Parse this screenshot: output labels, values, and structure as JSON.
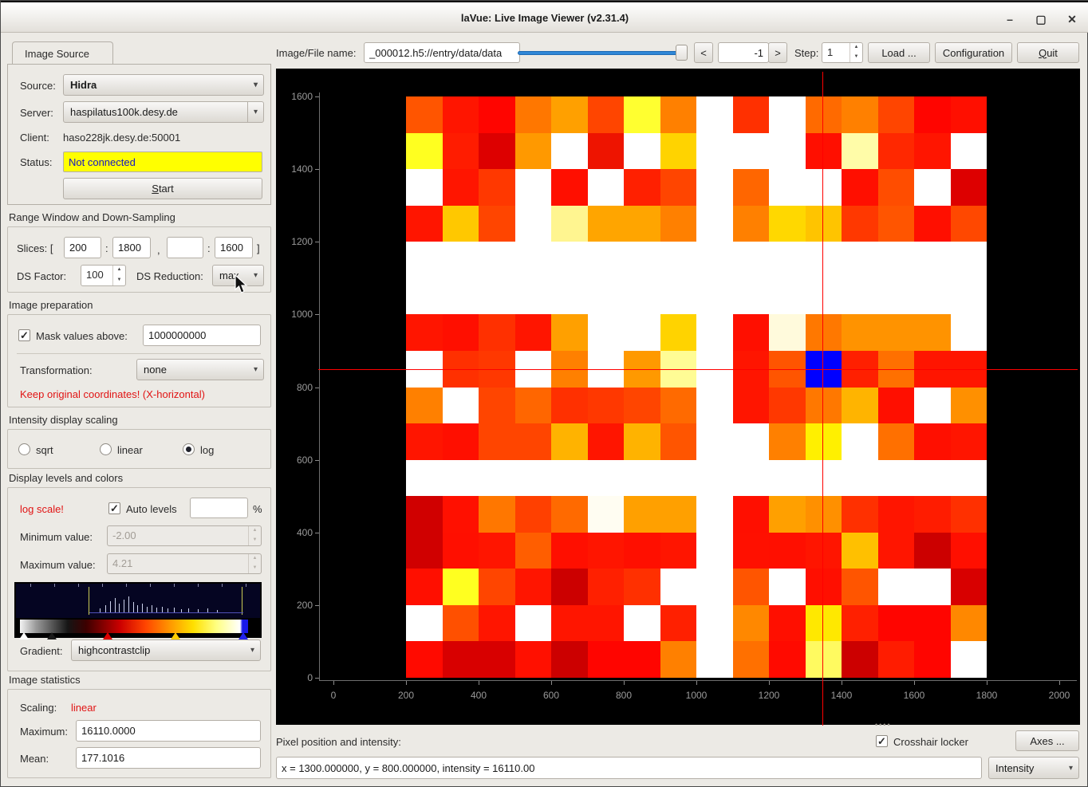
{
  "window": {
    "title": "laVue: Live Image Viewer (v2.31.4)",
    "minimize_icon": "–",
    "maximize_icon": "▢",
    "close_icon": "✕"
  },
  "icons": {
    "combo_arrow": "▾",
    "spin_up": "▲",
    "spin_down": "▼",
    "check": "✓"
  },
  "toolbar": {
    "file_label": "Image/File name:",
    "file_value": "_000012.h5://entry/data/data",
    "prev_button": "<",
    "frame_value": "-1",
    "next_button": ">",
    "step_label": "Step:",
    "step_value": "1",
    "load_button": "Load ...",
    "config_button": "Configuration",
    "quit_button": "Quit"
  },
  "source_panel": {
    "tab": "Image Source",
    "source_label": "Source:",
    "source_value": "Hidra",
    "server_label": "Server:",
    "server_value": "haspilatus100k.desy.de",
    "client_label": "Client:",
    "client_value": "haso228jk.desy.de:50001",
    "status_label": "Status:",
    "status_value": "Not connected",
    "start_button": "Start"
  },
  "range_section": {
    "title": "Range Window and Down-Sampling",
    "slices_label": "Slices: [",
    "slice_x1": "200",
    "colon1": ":",
    "slice_x2": "1800",
    "comma": ",",
    "slice_y1": "",
    "colon2": ":",
    "slice_y2": "1600",
    "bracket": "]",
    "ds_factor_label": "DS Factor:",
    "ds_factor_value": "100",
    "ds_reduction_label": "DS Reduction:",
    "ds_reduction_value": "max"
  },
  "prep_section": {
    "title": "Image preparation",
    "mask_label": "Mask values above:",
    "mask_value": "1000000000",
    "transform_label": "Transformation:",
    "transform_value": "none",
    "note": "Keep original coordinates! (X-horizontal)"
  },
  "scaling_section": {
    "title": "Intensity display scaling",
    "options": [
      "sqrt",
      "linear",
      "log"
    ],
    "selected": "log"
  },
  "levels_section": {
    "title": "Display levels and colors",
    "log_note": "log scale!",
    "auto_label": "Auto levels",
    "auto_value": "",
    "percent": "%",
    "min_label": "Minimum value:",
    "min_value": "-2.00",
    "max_label": "Maximum value:",
    "max_value": "4.21",
    "gradient_label": "Gradient:",
    "gradient_value": "highcontrastclip"
  },
  "stats_section": {
    "title": "Image statistics",
    "scaling_label": "Scaling:",
    "scaling_value": "linear",
    "maximum_label": "Maximum:",
    "maximum_value": "16110.0000",
    "mean_label": "Mean:",
    "mean_value": "177.1016"
  },
  "bottom_bar": {
    "pixel_label": "Pixel position and intensity:",
    "crosshair_label": "Crosshair locker",
    "axes_button": "Axes ...",
    "position_value": "x = 1300.000000, y = 800.000000, intensity = 16110.00",
    "display_combo": "Intensity"
  },
  "plot": {
    "x_ticks": [
      "0",
      "200",
      "400",
      "600",
      "800",
      "1000",
      "1200",
      "1400",
      "1600",
      "1800",
      "2000"
    ],
    "y_ticks": [
      "1600",
      "1400",
      "1200",
      "1000",
      "800",
      "600",
      "400",
      "200",
      "0"
    ],
    "crosshair_color": "#FF0000",
    "grid": [
      [
        "#FF5500",
        "#FF1500",
        "#FF0500",
        "#FF7700",
        "#FFA000",
        "#FF4500",
        "#FFFF30",
        "#FF8000",
        "#FFFFFF",
        "#FF3000",
        "#FFFFFF",
        "#FF6A00",
        "#FF8000",
        "#FF4500",
        "#FF0500",
        "#FF0F00"
      ],
      [
        "#FFFF20",
        "#FF1C00",
        "#DD0000",
        "#FF9900",
        "#FFFFFF",
        "#EE1400",
        "#FFFFFF",
        "#FFD300",
        "#FFFFFF",
        "#FFFFFF",
        "#FFFFFF",
        "#FF0F00",
        "#FFFCA8",
        "#FF2800",
        "#FF1500",
        "#FFFFFF"
      ],
      [
        "#FFFFFF",
        "#FF1500",
        "#FF3800",
        "#FFFFFF",
        "#FF0F00",
        "#FFFFFF",
        "#FF2000",
        "#FF4500",
        "#FFFFFF",
        "#FF6600",
        "#FFFFFF",
        "#FFFFFF",
        "#FF0F00",
        "#FF4D00",
        "#FFFFFF",
        "#DD0000"
      ],
      [
        "#FF1500",
        "#FFC800",
        "#FF4500",
        "#FFFFFF",
        "#FFF590",
        "#FFA500",
        "#FFA500",
        "#FF8000",
        "#FFFFFF",
        "#FF8000",
        "#FFD800",
        "#FFC400",
        "#FF3800",
        "#FF5500",
        "#FF0F00",
        "#FF4800"
      ],
      [
        "#FFFFFF",
        "#FFFFFF",
        "#FFFFFF",
        "#FFFFFF",
        "#FFFFFF",
        "#FFFFFF",
        "#FFFFFF",
        "#FFFFFF",
        "#FFFFFF",
        "#FFFFFF",
        "#FFFFFF",
        "#FFFFFF",
        "#FFFFFF",
        "#FFFFFF",
        "#FFFFFF",
        "#FFFFFF"
      ],
      [
        "#FFFFFF",
        "#FFFFFF",
        "#FFFFFF",
        "#FFFFFF",
        "#FFFFFF",
        "#FFFFFF",
        "#FFFFFF",
        "#FFFFFF",
        "#FFFFFF",
        "#FFFFFF",
        "#FFFFFF",
        "#FFFFFF",
        "#FFFFFF",
        "#FFFFFF",
        "#FFFFFF",
        "#FFFFFF"
      ],
      [
        "#FF1500",
        "#FF0F00",
        "#FF3000",
        "#FF1500",
        "#FFA000",
        "#FFFFFF",
        "#FFFFFF",
        "#FFD300",
        "#FFFFFF",
        "#FF0F00",
        "#FFFADC",
        "#FF7800",
        "#FF9300",
        "#FF9300",
        "#FF9300",
        "#FFFFFF"
      ],
      [
        "#FFFFFF",
        "#FF3000",
        "#FF3800",
        "#FFFFFF",
        "#FF8000",
        "#FFFFFF",
        "#FF9900",
        "#FFFC95",
        "#FFFFFF",
        "#FF1500",
        "#FF5500",
        "#0000FF",
        "#FF2000",
        "#FF7000",
        "#FF1500",
        "#FF1500"
      ],
      [
        "#FF8000",
        "#FFFFFF",
        "#FF4500",
        "#FF6600",
        "#FF3000",
        "#FF3800",
        "#FF4500",
        "#FF6A00",
        "#FFFFFF",
        "#FF1500",
        "#FF3800",
        "#FF7800",
        "#FFB400",
        "#FF0F00",
        "#FFFFFF",
        "#FF9000"
      ],
      [
        "#FF1500",
        "#FF0F00",
        "#FF4500",
        "#FF4500",
        "#FFB300",
        "#FF1500",
        "#FFB300",
        "#FF5500",
        "#FFFFFF",
        "#FFFFFF",
        "#FF8000",
        "#FFF000",
        "#FFFFFF",
        "#FF7000",
        "#FF0F00",
        "#FF1500"
      ],
      [
        "#FFFFFF",
        "#FFFFFF",
        "#FFFFFF",
        "#FFFFFF",
        "#FFFFFF",
        "#FFFFFF",
        "#FFFFFF",
        "#FFFFFF",
        "#FFFFFF",
        "#FFFFFF",
        "#FFFFFF",
        "#FFFFFF",
        "#FFFFFF",
        "#FFFFFF",
        "#FFFFFF",
        "#FFFFFF"
      ],
      [
        "#D00000",
        "#FF1000",
        "#FF7700",
        "#FF4000",
        "#FF6A00",
        "#FFFDF2",
        "#FFA000",
        "#FFA000",
        "#FFFFFF",
        "#FF0F00",
        "#FFA000",
        "#FF9000",
        "#FF3000",
        "#FF1500",
        "#FF1C00",
        "#FF3000"
      ],
      [
        "#D00000",
        "#FF0F00",
        "#FF1500",
        "#FF5E00",
        "#FF0F00",
        "#FF1500",
        "#FF0F00",
        "#FF1500",
        "#FFFFFF",
        "#FF1000",
        "#FF0F00",
        "#FF1500",
        "#FFC000",
        "#FF1500",
        "#CC0000",
        "#FF0F00"
      ],
      [
        "#FF0F00",
        "#FFFF20",
        "#FF4500",
        "#FF1500",
        "#CC0000",
        "#FF2000",
        "#FF3000",
        "#FFFFFF",
        "#FFFFFF",
        "#FF5500",
        "#FFFFFF",
        "#FF0F00",
        "#FF5500",
        "#FFFFFF",
        "#FFFFFF",
        "#D80000"
      ],
      [
        "#FFFFFF",
        "#FF5000",
        "#FF1500",
        "#FFFFFF",
        "#FF1500",
        "#FF1500",
        "#FFFFFF",
        "#FF2000",
        "#FFFFFF",
        "#FF8800",
        "#FF0F00",
        "#FFE800",
        "#FF2000",
        "#FF0500",
        "#FF0500",
        "#FF8800"
      ],
      [
        "#FF0A00",
        "#D80000",
        "#D80000",
        "#FF1000",
        "#CC0000",
        "#FF0500",
        "#FF0500",
        "#FF8000",
        "#FFFFFF",
        "#FF7000",
        "#FF0A00",
        "#FFFA60",
        "#CC0000",
        "#FF1C00",
        "#FF0500",
        "#FFFFFF"
      ]
    ]
  }
}
